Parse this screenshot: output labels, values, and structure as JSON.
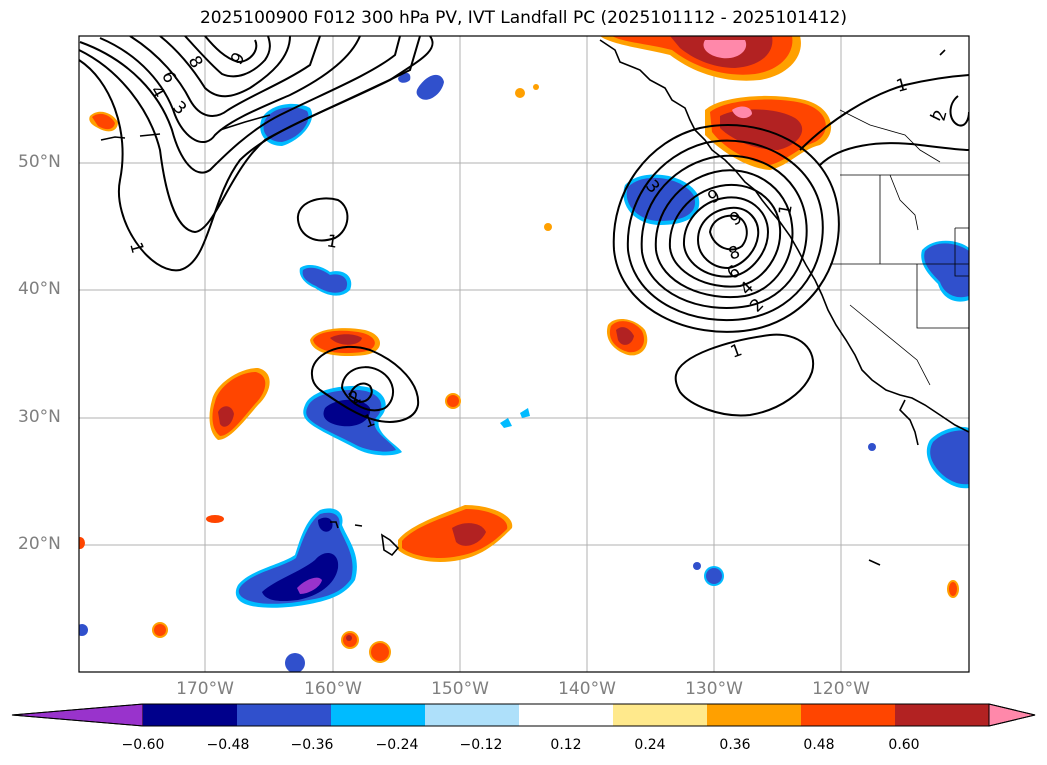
{
  "title": "2025100900 F012 300 hPa PV, IVT Landfall PC (2025101112 - 2025101412)",
  "lat_labels": [
    "50°N",
    "40°N",
    "30°N",
    "20°N"
  ],
  "lon_labels": [
    "170°W",
    "160°W",
    "150°W",
    "140°W",
    "130°W",
    "120°W"
  ],
  "colorbar": {
    "ticks": [
      "−0.60",
      "−0.48",
      "−0.36",
      "−0.24",
      "−0.12",
      "0.12",
      "0.24",
      "0.36",
      "0.48",
      "0.60"
    ],
    "colors": [
      "#9933cc",
      "#00008b",
      "#3050cc",
      "#00bbff",
      "#aee0fa",
      "#ffffff",
      "#ffe98c",
      "#ffa000",
      "#ff4500",
      "#b22222",
      "#ff88aa"
    ]
  },
  "contour_labels": [
    "1",
    "1",
    "1",
    "1",
    "1",
    "1",
    "2",
    "2",
    "2",
    "3",
    "3",
    "4",
    "4",
    "6",
    "6",
    "8",
    "8",
    "9",
    "9",
    "9"
  ]
}
